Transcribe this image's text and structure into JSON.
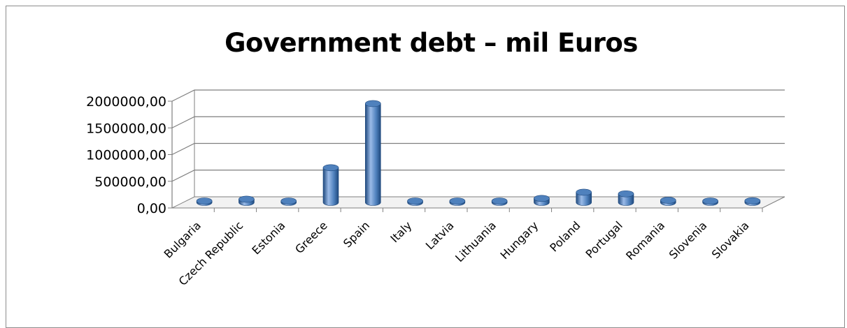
{
  "chart_data": {
    "type": "bar",
    "title": "Government debt – mil Euros",
    "xlabel": "",
    "ylabel": "",
    "ylim": [
      0,
      2000000
    ],
    "y_ticks": [
      "2000000,00",
      "1500000,00",
      "1000000,00",
      "500000,00",
      "0,00"
    ],
    "y_tick_values": [
      2000000,
      1500000,
      1000000,
      500000,
      0
    ],
    "grid": true,
    "style": "3d-cylinder",
    "colors": {
      "bar": "#4f81bd",
      "bar_dark": "#1f497d",
      "bar_light": "#9bbbe8",
      "grid": "#7f7f7f"
    },
    "categories": [
      "Bulgaria",
      "Czech Republic",
      "Estonia",
      "Greece",
      "Spain",
      "Italy",
      "Latvia",
      "Lithuania",
      "Hungary",
      "Poland",
      "Portugal",
      "Romania",
      "Slovenia",
      "Slovakia"
    ],
    "values": [
      6000,
      60000,
      2000,
      650000,
      1850000,
      5000,
      6000,
      5000,
      75000,
      190000,
      160000,
      40000,
      10000,
      30000
    ]
  }
}
